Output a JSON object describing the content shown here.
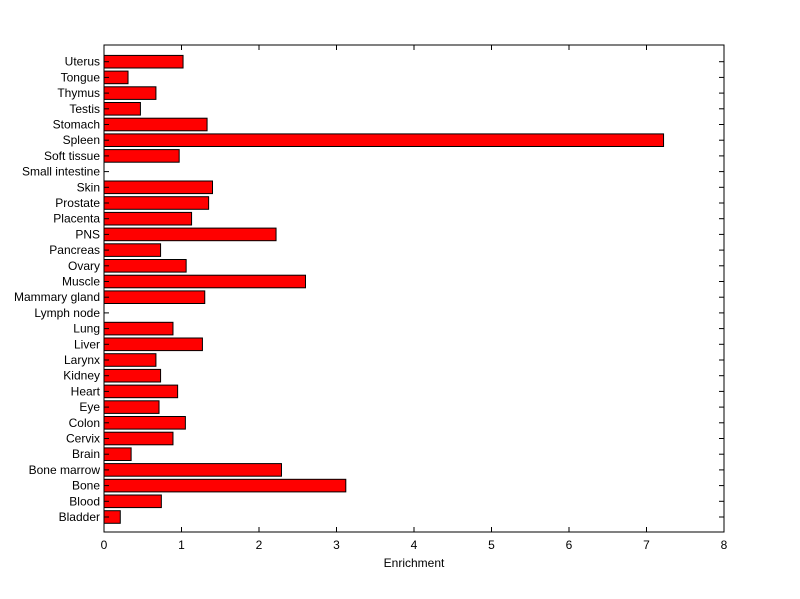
{
  "chart_data": {
    "type": "bar",
    "orientation": "horizontal",
    "categories": [
      "Bladder",
      "Blood",
      "Bone",
      "Bone marrow",
      "Brain",
      "Cervix",
      "Colon",
      "Eye",
      "Heart",
      "Kidney",
      "Larynx",
      "Liver",
      "Lung",
      "Lymph node",
      "Mammary gland",
      "Muscle",
      "Ovary",
      "Pancreas",
      "PNS",
      "Placenta",
      "Prostate",
      "Skin",
      "Small intestine",
      "Soft tissue",
      "Spleen",
      "Stomach",
      "Testis",
      "Thymus",
      "Tongue",
      "Uterus"
    ],
    "values": [
      0.21,
      0.74,
      3.12,
      2.29,
      0.35,
      0.89,
      1.05,
      0.71,
      0.95,
      0.73,
      0.67,
      1.27,
      0.89,
      0,
      1.3,
      2.6,
      1.06,
      0.73,
      2.22,
      1.13,
      1.35,
      1.4,
      0,
      0.97,
      7.22,
      1.33,
      0.47,
      0.67,
      0.31,
      1.02
    ],
    "title": "",
    "xlabel": "Enrichment",
    "ylabel": "",
    "xlim": [
      0,
      8
    ],
    "xticks": [
      0,
      1,
      2,
      3,
      4,
      5,
      6,
      7,
      8
    ],
    "grid": false,
    "bar_color": "#ff0000",
    "bar_edge_color": "#000000"
  }
}
